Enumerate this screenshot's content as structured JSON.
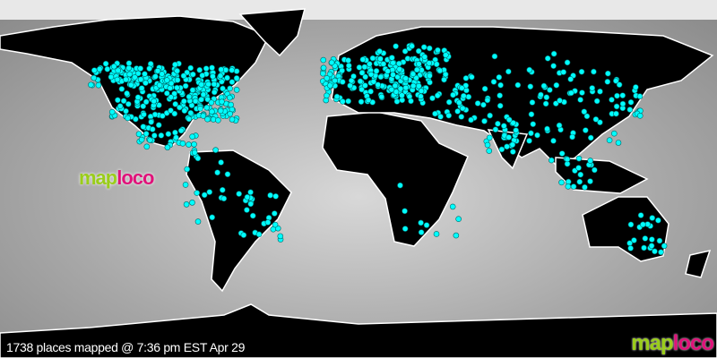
{
  "status": {
    "text": "1738 places mapped @ 7:36 pm EST Apr 29",
    "count": 1738
  },
  "logo": {
    "part1": "map",
    "part2": "loco"
  },
  "colors": {
    "marker": "#00ffff",
    "land": "#000000",
    "ocean": "#b0b0b0",
    "logo_green": "#9acd1a",
    "logo_pink": "#e0127a"
  },
  "marker_icon": "cyan-dot"
}
